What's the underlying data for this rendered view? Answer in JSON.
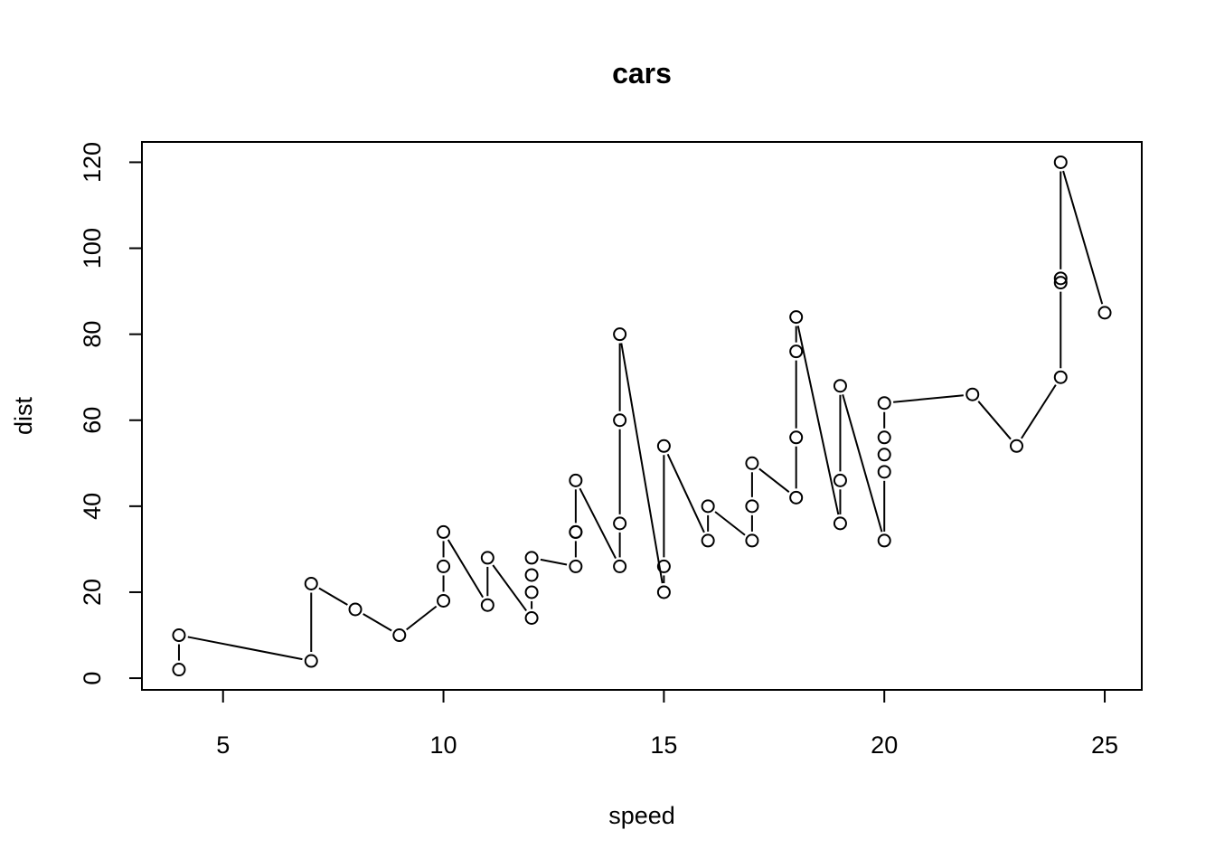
{
  "chart_data": {
    "type": "line",
    "title": "cars",
    "xlabel": "speed",
    "ylabel": "dist",
    "xlim": [
      3.16,
      25.84
    ],
    "ylim": [
      -2.72,
      124.72
    ],
    "xticks": [
      5,
      10,
      15,
      20,
      25
    ],
    "yticks": [
      0,
      20,
      40,
      60,
      80,
      100,
      120
    ],
    "xtick_labels": [
      "5",
      "10",
      "15",
      "20",
      "25"
    ],
    "ytick_labels": [
      "0",
      "20",
      "40",
      "60",
      "80",
      "100",
      "120"
    ],
    "grid": false,
    "marker": "open-circle",
    "line_style": "gapped segments joining consecutive points",
    "series": [
      {
        "x": [
          4,
          4,
          7,
          7,
          8,
          9,
          10,
          10,
          10,
          11,
          11,
          12,
          12,
          12,
          12,
          13,
          13,
          13,
          13,
          14,
          14,
          14,
          14,
          15,
          15,
          15,
          16,
          16,
          17,
          17,
          17,
          18,
          18,
          18,
          18,
          19,
          19,
          19,
          20,
          20,
          20,
          20,
          20,
          22,
          23,
          24,
          24,
          24,
          24,
          25
        ],
        "y": [
          2,
          10,
          4,
          22,
          16,
          10,
          18,
          26,
          34,
          17,
          28,
          14,
          20,
          24,
          28,
          26,
          34,
          34,
          46,
          26,
          36,
          60,
          80,
          20,
          26,
          54,
          32,
          40,
          32,
          40,
          50,
          42,
          56,
          76,
          84,
          36,
          46,
          68,
          32,
          48,
          52,
          56,
          64,
          66,
          54,
          70,
          92,
          93,
          120,
          85
        ]
      }
    ]
  }
}
